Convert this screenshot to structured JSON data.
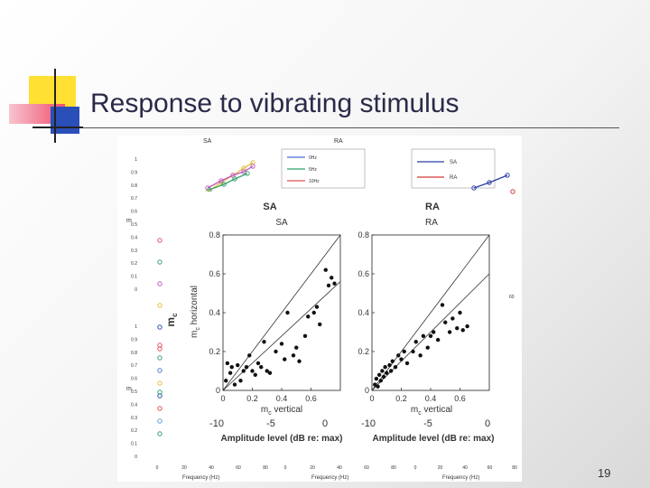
{
  "slide": {
    "title": "Response to vibrating stimulus",
    "page_number": "19"
  },
  "colors": {
    "title": "#2a2a4a",
    "deco_yellow": "#ffe033",
    "deco_red": "#f0506e",
    "deco_blue": "#2b4fb8"
  },
  "background_figure": {
    "panel_titles": [
      "SA",
      "RA"
    ],
    "legend_left": [
      "0Hz",
      "5Hz",
      "10Hz"
    ],
    "legend_right": [
      "SA",
      "RA"
    ],
    "y_label": "m_c",
    "x_label": "Frequency (Hz)",
    "y_ticks": [
      "0",
      "0.1",
      "0.2",
      "0.3",
      "0.4",
      "0.5",
      "0.6",
      "0.7",
      "0.8",
      "0.9",
      "1"
    ],
    "x_ticks": [
      "0",
      "20",
      "40",
      "60",
      "80"
    ]
  },
  "inset": {
    "outer_titles": [
      "SA",
      "RA"
    ],
    "inner_titles": [
      "SA",
      "RA"
    ],
    "y_label_outer": "m_c",
    "y_label_inner": "m_c horizontal",
    "x_label_inner": "m_c vertical",
    "x_label_outer": "Amplitude level (dB re: max)",
    "y_ticks": [
      "0",
      "0.2",
      "0.4",
      "0.6",
      "0.8"
    ],
    "x_ticks": [
      "0",
      "0.2",
      "0.4",
      "0.6"
    ],
    "amp_ticks": [
      "-10",
      "-5",
      "0"
    ]
  },
  "chart_data": [
    {
      "type": "scatter",
      "title": "SA",
      "xlabel": "mc vertical",
      "ylabel": "mc horizontal",
      "xlim": [
        0,
        0.8
      ],
      "ylim": [
        0,
        0.8
      ],
      "points": [
        [
          0.02,
          0.05
        ],
        [
          0.03,
          0.14
        ],
        [
          0.05,
          0.09
        ],
        [
          0.06,
          0.12
        ],
        [
          0.08,
          0.03
        ],
        [
          0.1,
          0.13
        ],
        [
          0.12,
          0.05
        ],
        [
          0.14,
          0.1
        ],
        [
          0.16,
          0.12
        ],
        [
          0.18,
          0.18
        ],
        [
          0.2,
          0.1
        ],
        [
          0.22,
          0.08
        ],
        [
          0.24,
          0.14
        ],
        [
          0.26,
          0.12
        ],
        [
          0.28,
          0.25
        ],
        [
          0.3,
          0.1
        ],
        [
          0.32,
          0.09
        ],
        [
          0.36,
          0.2
        ],
        [
          0.4,
          0.24
        ],
        [
          0.42,
          0.16
        ],
        [
          0.44,
          0.4
        ],
        [
          0.48,
          0.18
        ],
        [
          0.5,
          0.22
        ],
        [
          0.52,
          0.15
        ],
        [
          0.56,
          0.28
        ],
        [
          0.58,
          0.38
        ],
        [
          0.62,
          0.4
        ],
        [
          0.64,
          0.43
        ],
        [
          0.66,
          0.34
        ],
        [
          0.7,
          0.62
        ],
        [
          0.72,
          0.54
        ],
        [
          0.74,
          0.58
        ],
        [
          0.76,
          0.55
        ]
      ],
      "lines": [
        {
          "name": "",
          "x": [
            0,
            0.8
          ],
          "y": [
            0,
            0.8
          ]
        },
        {
          "name": "",
          "x": [
            0,
            0.8
          ],
          "y": [
            0,
            0.56
          ]
        }
      ]
    },
    {
      "type": "scatter",
      "title": "RA",
      "xlabel": "mc vertical",
      "ylabel": "",
      "xlim": [
        0,
        0.8
      ],
      "ylim": [
        0,
        0.8
      ],
      "points": [
        [
          0.02,
          0.03
        ],
        [
          0.03,
          0.06
        ],
        [
          0.04,
          0.02
        ],
        [
          0.05,
          0.08
        ],
        [
          0.06,
          0.05
        ],
        [
          0.07,
          0.1
        ],
        [
          0.08,
          0.07
        ],
        [
          0.09,
          0.12
        ],
        [
          0.1,
          0.09
        ],
        [
          0.12,
          0.13
        ],
        [
          0.13,
          0.1
        ],
        [
          0.14,
          0.15
        ],
        [
          0.16,
          0.12
        ],
        [
          0.18,
          0.18
        ],
        [
          0.2,
          0.16
        ],
        [
          0.22,
          0.2
        ],
        [
          0.24,
          0.14
        ],
        [
          0.28,
          0.2
        ],
        [
          0.3,
          0.25
        ],
        [
          0.33,
          0.18
        ],
        [
          0.35,
          0.28
        ],
        [
          0.38,
          0.22
        ],
        [
          0.4,
          0.28
        ],
        [
          0.42,
          0.3
        ],
        [
          0.45,
          0.26
        ],
        [
          0.48,
          0.44
        ],
        [
          0.5,
          0.35
        ],
        [
          0.53,
          0.3
        ],
        [
          0.55,
          0.37
        ],
        [
          0.58,
          0.32
        ],
        [
          0.6,
          0.4
        ],
        [
          0.62,
          0.31
        ],
        [
          0.65,
          0.33
        ]
      ],
      "lines": [
        {
          "name": "",
          "x": [
            0,
            0.8
          ],
          "y": [
            0,
            0.8
          ]
        },
        {
          "name": "",
          "x": [
            0,
            0.8
          ],
          "y": [
            0,
            0.6
          ]
        }
      ]
    }
  ]
}
